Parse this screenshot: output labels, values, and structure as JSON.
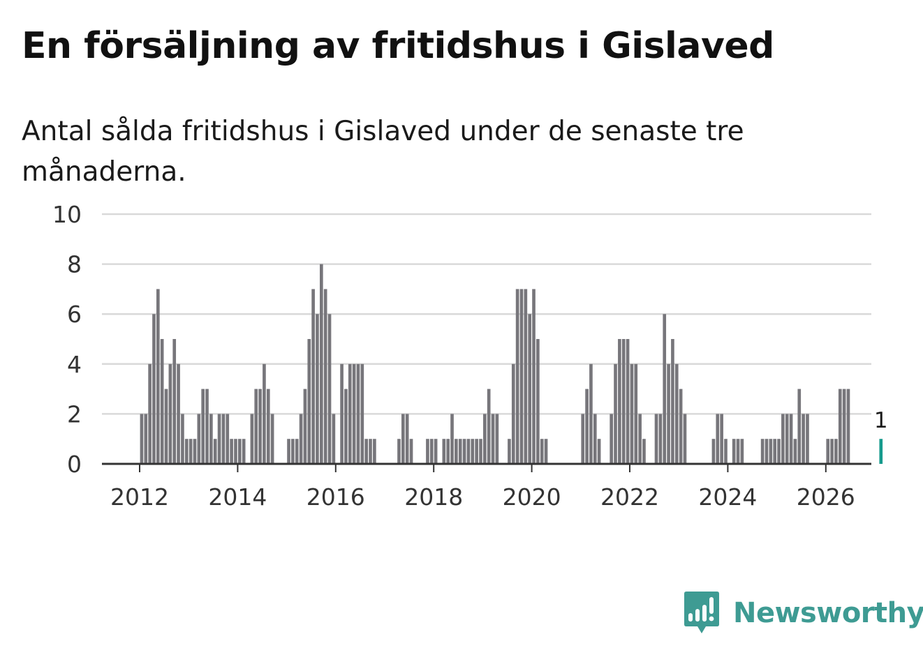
{
  "title": "En försäljning av fritidshus i Gislaved",
  "subtitle": "Antal sålda fritidshus i Gislaved under de senaste tre månaderna.",
  "brand": {
    "name": "Newsworthy",
    "icon": "newsworthy-logo-icon",
    "color": "#3e9b93"
  },
  "colors": {
    "bar": "#77767b",
    "highlight": "#169a8d",
    "grid": "#d9d9d9",
    "axis": "#333333"
  },
  "chart_data": {
    "type": "bar",
    "title": "En försäljning av fritidshus i Gislaved",
    "xlabel": "",
    "ylabel": "",
    "ylim": [
      0,
      10
    ],
    "yticks": [
      0,
      2,
      4,
      6,
      8,
      10
    ],
    "xticks": [
      2012,
      2014,
      2016,
      2018,
      2020,
      2022,
      2024,
      2026
    ],
    "x_start": "2011-01",
    "grid": true,
    "series": [
      {
        "name": "Antal sålda fritidshus",
        "values": [
          0,
          0,
          0,
          0,
          0,
          0,
          0,
          0,
          0,
          0,
          0,
          0,
          2,
          2,
          4,
          6,
          7,
          5,
          3,
          4,
          5,
          4,
          2,
          1,
          1,
          1,
          2,
          3,
          3,
          2,
          1,
          2,
          2,
          2,
          1,
          1,
          1,
          1,
          0,
          2,
          3,
          3,
          4,
          3,
          2,
          0,
          0,
          0,
          1,
          1,
          1,
          2,
          3,
          5,
          7,
          6,
          8,
          7,
          6,
          2,
          0,
          4,
          3,
          4,
          4,
          4,
          4,
          1,
          1,
          1,
          0,
          0,
          0,
          0,
          0,
          1,
          2,
          2,
          1,
          0,
          0,
          0,
          1,
          1,
          1,
          0,
          1,
          1,
          2,
          1,
          1,
          1,
          1,
          1,
          1,
          1,
          2,
          3,
          2,
          2,
          0,
          0,
          1,
          4,
          7,
          7,
          7,
          6,
          7,
          5,
          1,
          1,
          0,
          0,
          0,
          0,
          0,
          0,
          0,
          0,
          2,
          3,
          4,
          2,
          1,
          0,
          0,
          2,
          4,
          5,
          5,
          5,
          4,
          4,
          2,
          1,
          0,
          0,
          2,
          2,
          6,
          4,
          5,
          4,
          3,
          2,
          0,
          0,
          0,
          0,
          0,
          0,
          1,
          2,
          2,
          1,
          0,
          1,
          1,
          1,
          0,
          0,
          0,
          0,
          1,
          1,
          1,
          1,
          1,
          2,
          2,
          2,
          1,
          3,
          2,
          2,
          0,
          0,
          0,
          0,
          1,
          1,
          1,
          3,
          3,
          3,
          0,
          0,
          0,
          0,
          0,
          0,
          0,
          1
        ]
      }
    ],
    "highlight": {
      "index": 193,
      "value": 1,
      "label": "1"
    }
  }
}
